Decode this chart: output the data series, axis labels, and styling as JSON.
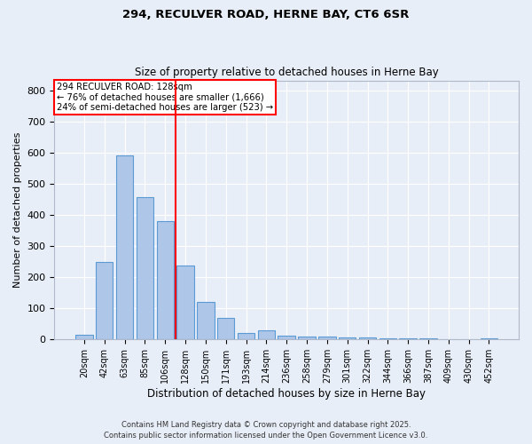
{
  "title1": "294, RECULVER ROAD, HERNE BAY, CT6 6SR",
  "title2": "Size of property relative to detached houses in Herne Bay",
  "xlabel": "Distribution of detached houses by size in Herne Bay",
  "ylabel": "Number of detached properties",
  "categories": [
    "20sqm",
    "42sqm",
    "63sqm",
    "85sqm",
    "106sqm",
    "128sqm",
    "150sqm",
    "171sqm",
    "193sqm",
    "214sqm",
    "236sqm",
    "258sqm",
    "279sqm",
    "301sqm",
    "322sqm",
    "344sqm",
    "366sqm",
    "387sqm",
    "409sqm",
    "430sqm",
    "452sqm"
  ],
  "values": [
    15,
    250,
    590,
    458,
    380,
    237,
    122,
    68,
    22,
    30,
    12,
    10,
    10,
    8,
    8,
    3,
    3,
    3,
    0,
    0,
    5
  ],
  "bar_color": "#aec6e8",
  "bar_edge_color": "#5b9bd5",
  "vline_color": "red",
  "annotation_title": "294 RECULVER ROAD: 128sqm",
  "annotation_line1": "← 76% of detached houses are smaller (1,666)",
  "annotation_line2": "24% of semi-detached houses are larger (523) →",
  "annotation_box_color": "red",
  "ylim": [
    0,
    830
  ],
  "yticks": [
    0,
    100,
    200,
    300,
    400,
    500,
    600,
    700,
    800
  ],
  "background_color": "#e8eef7",
  "grid_color": "#ffffff",
  "footnote1": "Contains HM Land Registry data © Crown copyright and database right 2025.",
  "footnote2": "Contains public sector information licensed under the Open Government Licence v3.0."
}
